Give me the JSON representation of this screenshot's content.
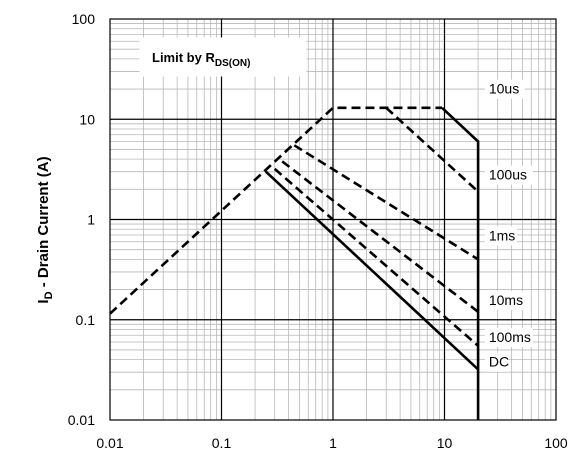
{
  "chart_data": {
    "type": "line",
    "title": "",
    "xscale": "log",
    "yscale": "log",
    "xlim": [
      0.01,
      100
    ],
    "ylim": [
      0.01,
      100
    ],
    "grid": true,
    "ylabel": {
      "main": "I",
      "sub": "D",
      "rest": " - Drain Current (A)"
    },
    "xlabel": "",
    "x_ticks": [
      "0.01",
      "0.1",
      "1",
      "10",
      "100"
    ],
    "y_ticks": [
      "100",
      "10",
      "1",
      "0.1",
      "0.01"
    ],
    "annotation": {
      "main": "Limit by R",
      "sub": "DS(ON)"
    },
    "series": [
      {
        "name": "10us",
        "style": "solid",
        "points": [
          [
            9.5,
            13
          ],
          [
            20,
            6
          ],
          [
            20,
            0.01
          ]
        ]
      },
      {
        "name": "100us",
        "style": "dashed",
        "points": [
          [
            3,
            13
          ],
          [
            20,
            1.9
          ]
        ]
      },
      {
        "name": "1ms",
        "style": "dashed",
        "points": [
          [
            0.45,
            5.5
          ],
          [
            20,
            0.4
          ]
        ]
      },
      {
        "name": "10ms",
        "style": "dashed",
        "points": [
          [
            0.35,
            3.8
          ],
          [
            20,
            0.12
          ]
        ]
      },
      {
        "name": "100ms",
        "style": "dashed",
        "points": [
          [
            0.3,
            3.2
          ],
          [
            20,
            0.055
          ]
        ]
      },
      {
        "name": "DC",
        "style": "solid",
        "points": [
          [
            0.25,
            3
          ],
          [
            20,
            0.032
          ]
        ]
      },
      {
        "name": "",
        "style": "dashed",
        "points": [
          [
            0.01,
            0.115
          ],
          [
            1,
            13
          ],
          [
            9.5,
            13
          ]
        ]
      }
    ],
    "curve_labels": [
      {
        "text": "10us",
        "x": 25,
        "y": 18
      },
      {
        "text": "100us",
        "x": 25,
        "y": 2.5
      },
      {
        "text": "1ms",
        "x": 25,
        "y": 0.62
      },
      {
        "text": "10ms",
        "x": 25,
        "y": 0.14
      },
      {
        "text": "100ms",
        "x": 25,
        "y": 0.06
      },
      {
        "text": "DC",
        "x": 25,
        "y": 0.034
      }
    ]
  }
}
